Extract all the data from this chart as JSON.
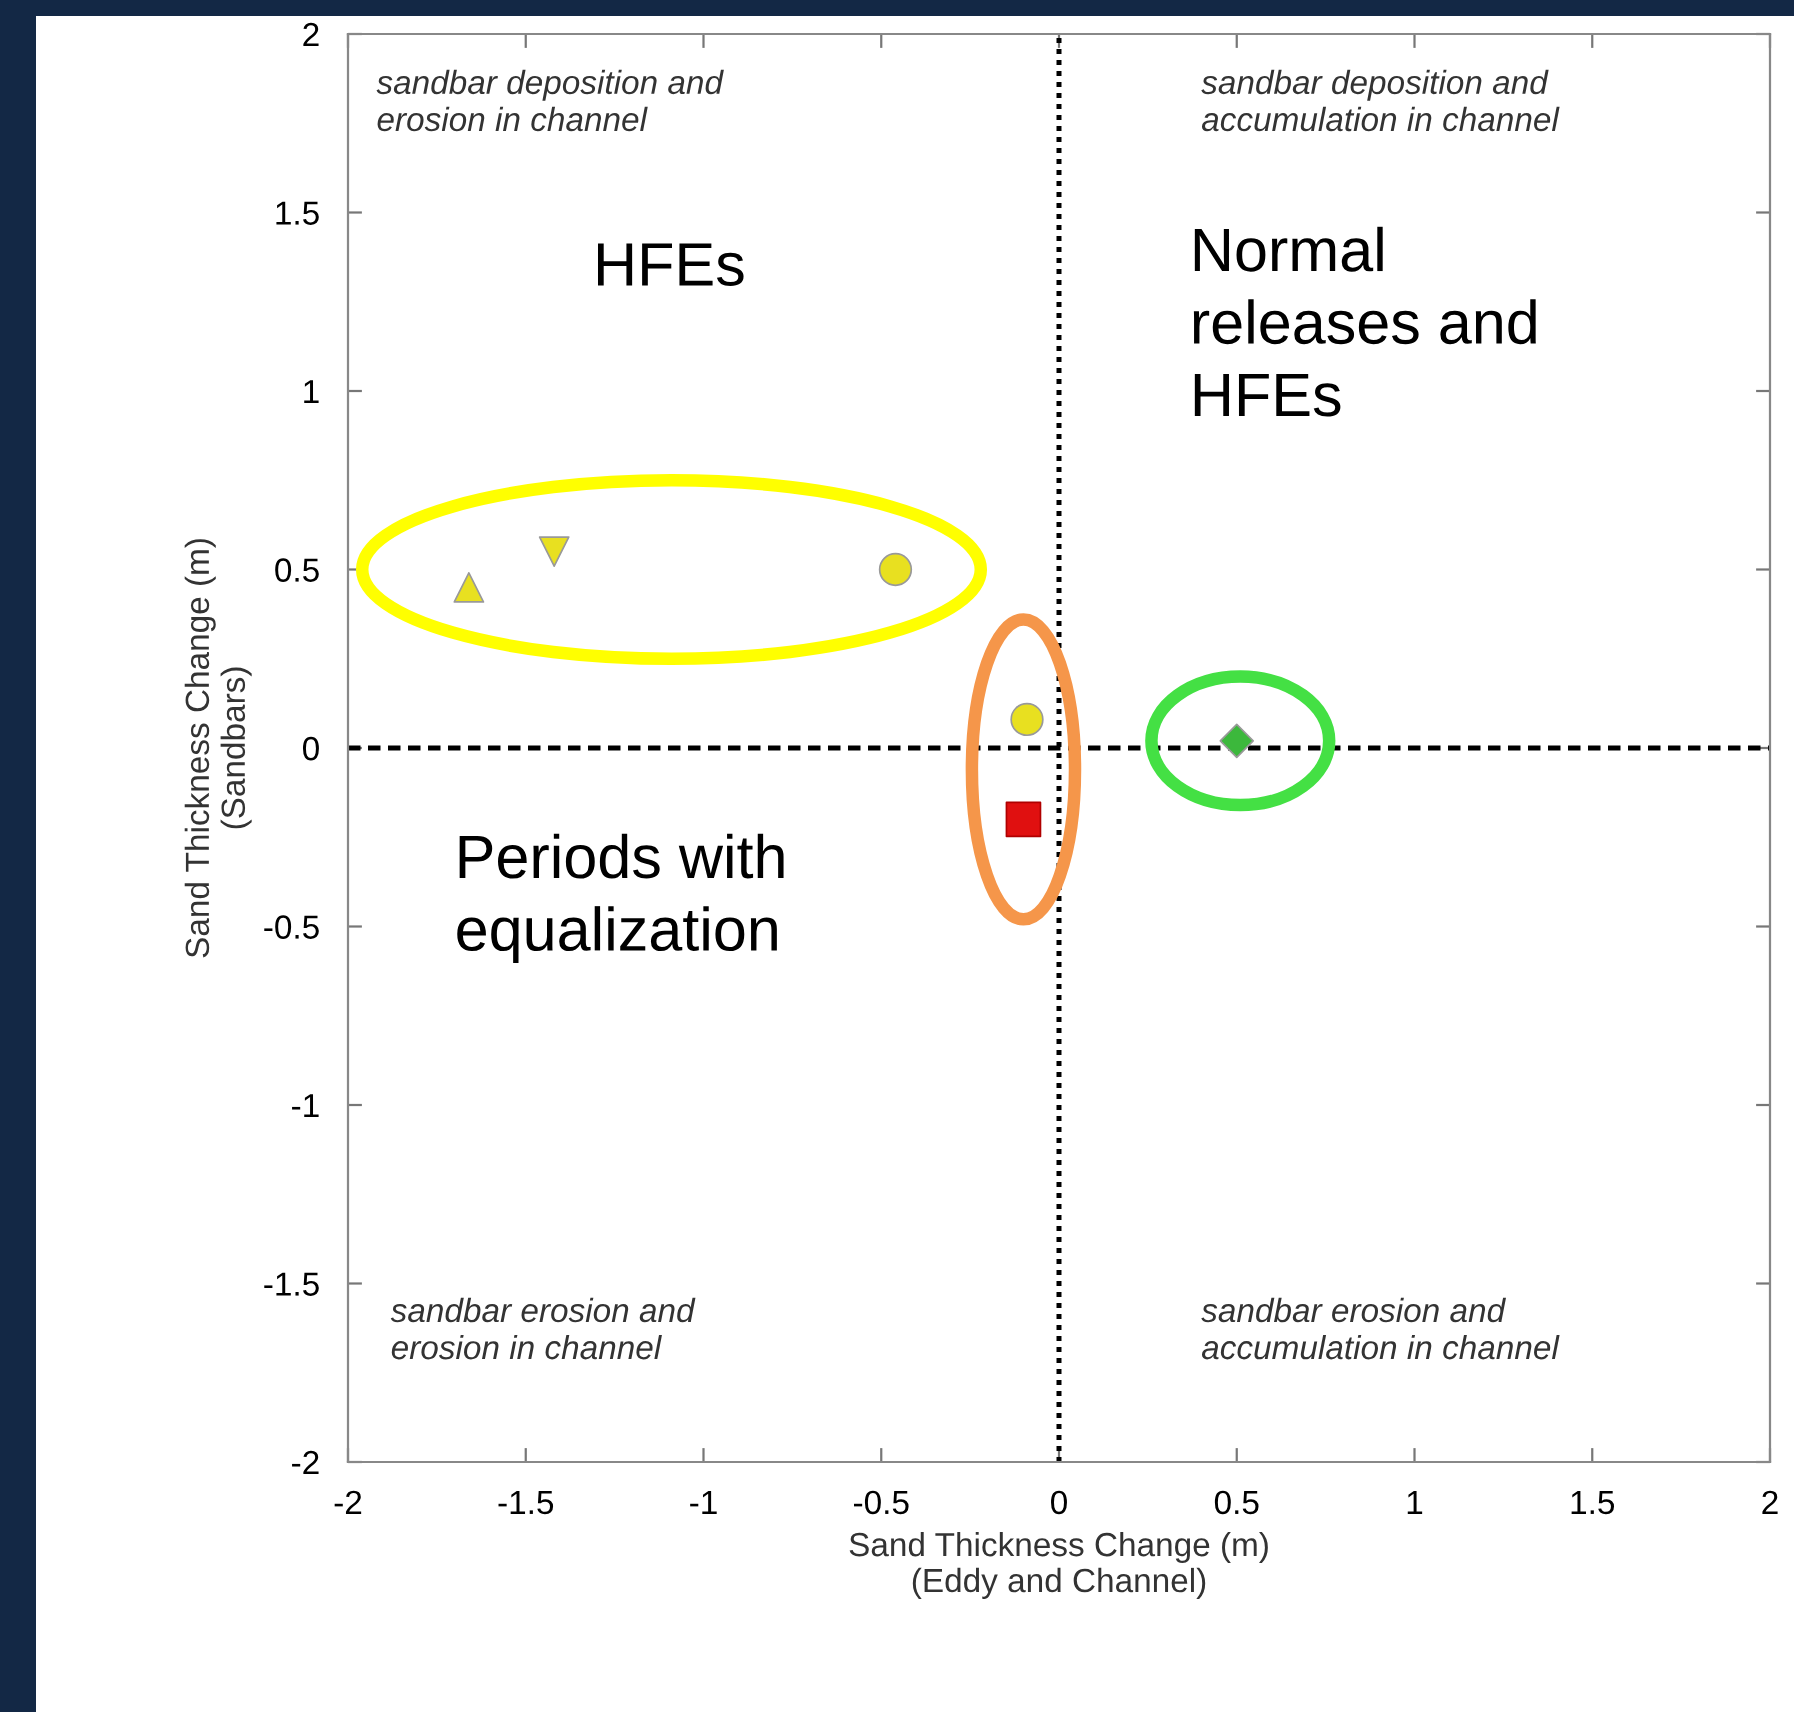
{
  "chart_data": {
    "type": "scatter",
    "xlabel": "Sand Thickness Change (m)\n(Eddy and Channel)",
    "ylabel": "Sand Thickness Change (m)\n(Sandbars)",
    "xlim": [
      -2,
      2
    ],
    "ylim": [
      -2,
      2
    ],
    "xticks": [
      -2,
      -1.5,
      -1,
      -0.5,
      0,
      0.5,
      1,
      1.5,
      2
    ],
    "yticks": [
      -2,
      -1.5,
      -1,
      -0.5,
      0,
      0.5,
      1,
      1.5,
      2
    ],
    "grid": false,
    "legend": false,
    "series": [
      {
        "color": "#e8e020",
        "marker": "triangle",
        "x": [
          -1.66
        ],
        "values": [
          0.45
        ]
      },
      {
        "color": "#e8e020",
        "marker": "triangle-down",
        "x": [
          -1.42
        ],
        "values": [
          0.55
        ]
      },
      {
        "color": "#e8e020",
        "marker": "circle",
        "x": [
          -0.46
        ],
        "values": [
          0.5
        ]
      },
      {
        "color": "#e8e020",
        "marker": "circle",
        "x": [
          -0.09
        ],
        "values": [
          0.08
        ]
      },
      {
        "color": "#e01010",
        "marker": "square",
        "x": [
          -0.1
        ],
        "values": [
          -0.2
        ]
      },
      {
        "color": "#3cb83c",
        "marker": "diamond",
        "x": [
          0.5
        ],
        "values": [
          0.02
        ]
      }
    ],
    "ref_lines": [
      {
        "axis": "x",
        "value": 0,
        "line_style": "dotted",
        "color": "#000000"
      },
      {
        "axis": "y",
        "value": 0,
        "line_style": "dashed",
        "color": "#000000"
      }
    ],
    "annotations": [
      "sandbar deposition and\nerosion in channel",
      "sandbar deposition and\naccumulation in channel",
      "sandbar erosion and\nerosion in channel",
      "sandbar erosion and\naccumulation in channel",
      "HFEs",
      "Normal\nreleases and\nHFEs",
      "Periods with\nequalization"
    ]
  }
}
